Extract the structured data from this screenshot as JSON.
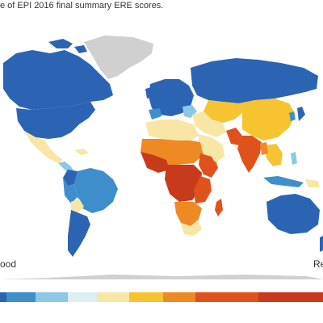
{
  "caption": "e of EPI 2016 final summary ERE scores.",
  "legend": {
    "good_label": "ood",
    "bad_label": "Re",
    "swatches": [
      "#2b64b3",
      "#3f8ecc",
      "#8cc8e6",
      "#dfeef2",
      "#f7e6a6",
      "#f5c430",
      "#ee8a24",
      "#e0521c",
      "#c73a1c"
    ]
  },
  "colors": {
    "ocean": "#ffffff",
    "no_data": "#d0d0d0",
    "dark_blue": "#2b64b3",
    "mid_blue": "#3f8ecc",
    "light_blue": "#8cc8e6",
    "very_light_blue": "#dfeef2",
    "light_yellow": "#f7e6a6",
    "yellow": "#f5c430",
    "orange": "#ee8a24",
    "dark_orange": "#e0521c",
    "red": "#c73a1c"
  }
}
